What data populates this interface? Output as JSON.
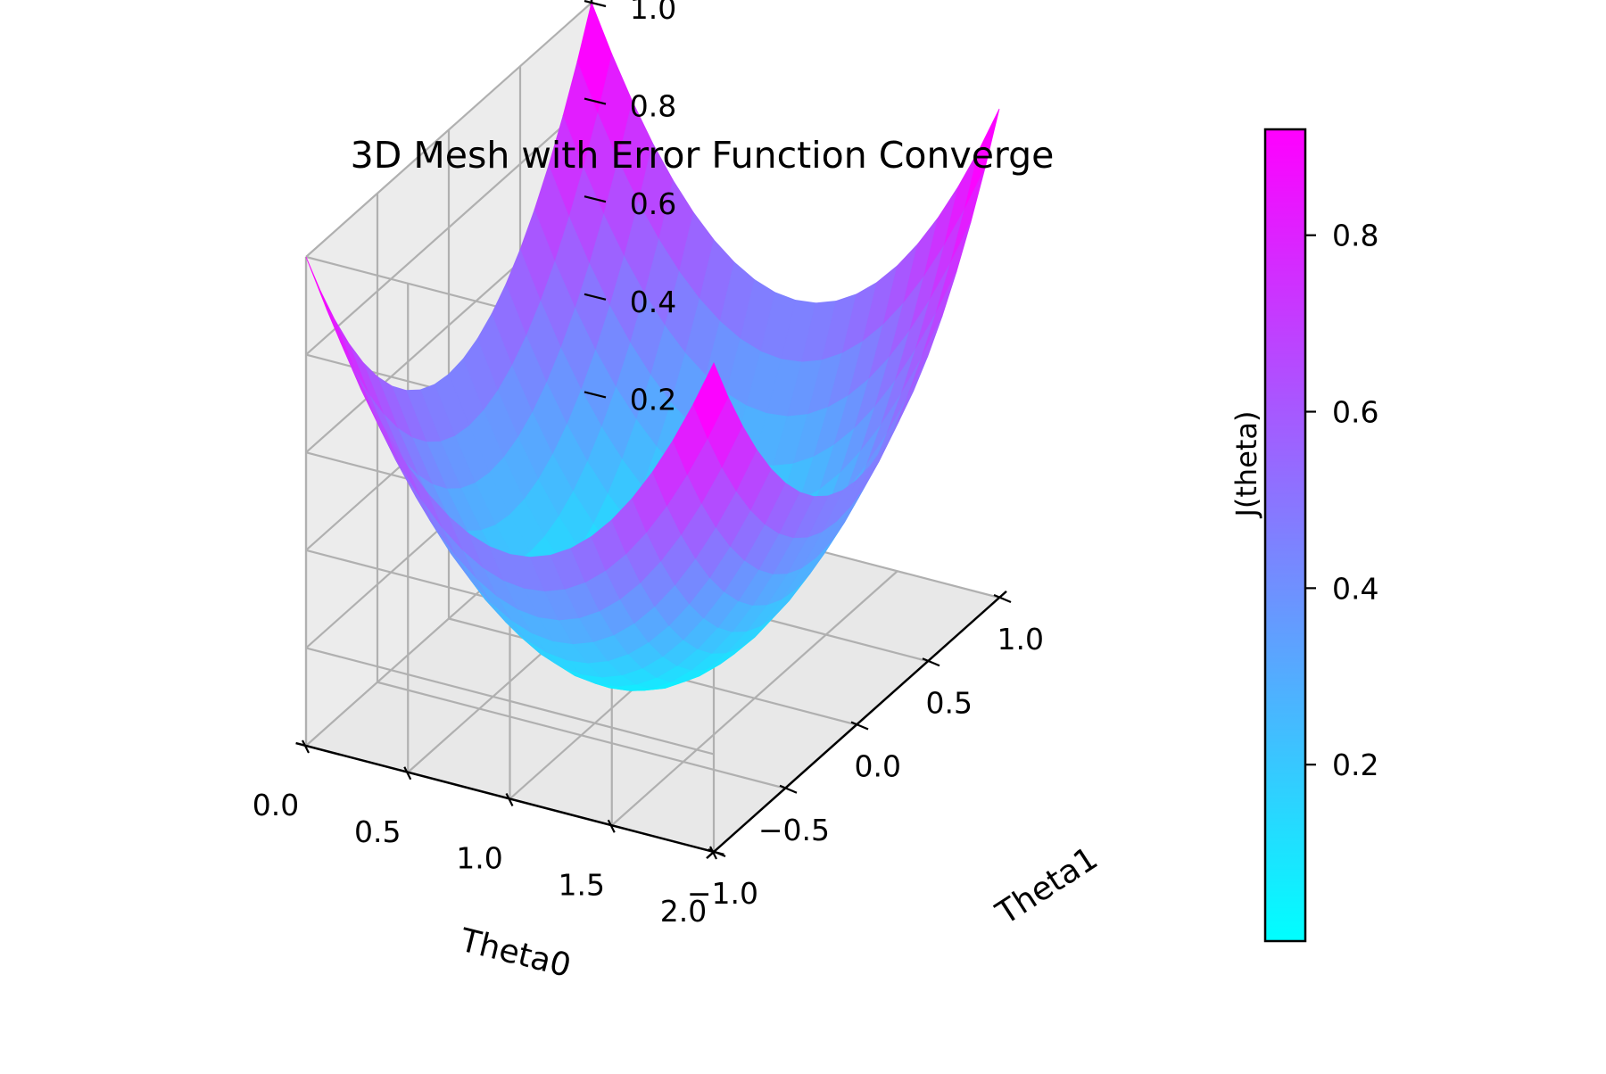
{
  "chart_data": {
    "type": "surface",
    "title": "3D Mesh with Error Function Converge",
    "xlabel": "Theta0",
    "ylabel": "Theta1",
    "colorbar_label": "J(theta)",
    "colormap": "cool",
    "colormap_colors": [
      "#00ffff",
      "#ff00ff"
    ],
    "function": "J(theta0, theta1) = ((theta0 - 1)^2 + theta1^2) / 2",
    "x_range": [
      0,
      2
    ],
    "y_range": [
      -1,
      1
    ],
    "z_range": [
      0,
      1
    ],
    "grid_steps": 20,
    "xticks": [
      0.0,
      0.5,
      1.0,
      1.5,
      2.0
    ],
    "xtick_labels": [
      "0.0",
      "0.5",
      "1.0",
      "1.5",
      "2.0"
    ],
    "yticks": [
      -1.0,
      -0.5,
      0.0,
      0.5,
      1.0
    ],
    "ytick_labels": [
      "−1.0",
      "−0.5",
      "0.0",
      "0.5",
      "1.0"
    ],
    "zticks": [
      0.2,
      0.4,
      0.6,
      0.8,
      1.0
    ],
    "ztick_labels": [
      "0.2",
      "0.4",
      "0.6",
      "0.8",
      "1.0"
    ],
    "colorbar_range": [
      0,
      0.92
    ],
    "colorbar_ticks": [
      0.2,
      0.4,
      0.6,
      0.8
    ],
    "colorbar_tick_labels": [
      "0.2",
      "0.4",
      "0.6",
      "0.8"
    ],
    "grid": true,
    "legend": "none",
    "view": {
      "elevation": 30,
      "azimuth": -60
    }
  }
}
